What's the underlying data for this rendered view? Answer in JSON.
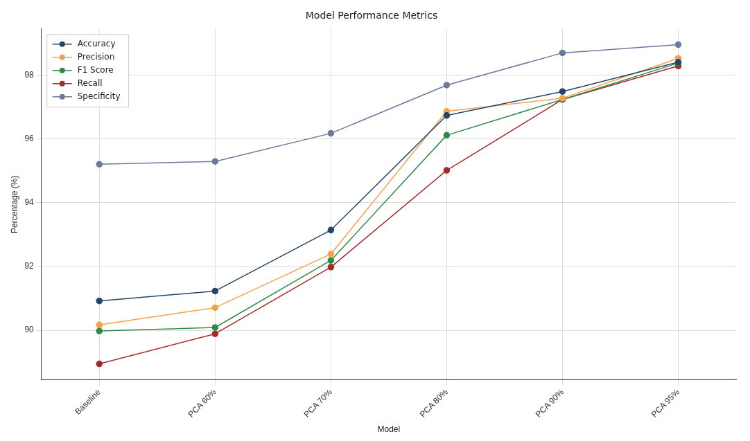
{
  "chart_data": {
    "type": "line",
    "title": "Model Performance Metrics",
    "xlabel": "Model",
    "ylabel": "Percentage (%)",
    "categories": [
      "Baseline",
      "PCA 60%",
      "PCA 70%",
      "PCA 80%",
      "PCA 90%",
      "PCA 95%"
    ],
    "series": [
      {
        "name": "Accuracy",
        "color": "#24456b",
        "values": [
          90.92,
          91.23,
          93.14,
          96.73,
          97.48,
          98.4
        ]
      },
      {
        "name": "Precision",
        "color": "#f5a04a",
        "values": [
          90.17,
          90.71,
          92.39,
          96.86,
          97.27,
          98.52
        ]
      },
      {
        "name": "F1 Score",
        "color": "#2e8b45",
        "values": [
          89.98,
          90.09,
          92.19,
          96.11,
          97.23,
          98.37
        ]
      },
      {
        "name": "Recall",
        "color": "#a5282a",
        "values": [
          88.95,
          89.89,
          91.98,
          95.01,
          97.23,
          98.28
        ]
      },
      {
        "name": "Specificity",
        "color": "#6a7a9a",
        "values": [
          95.2,
          95.29,
          96.17,
          97.68,
          98.69,
          98.95
        ]
      }
    ],
    "ylim": [
      88.45,
      99.44
    ],
    "yticks": [
      90,
      92,
      94,
      96,
      98
    ],
    "grid": true,
    "legend": "top left",
    "marker": "circle",
    "line_style": "solid"
  }
}
